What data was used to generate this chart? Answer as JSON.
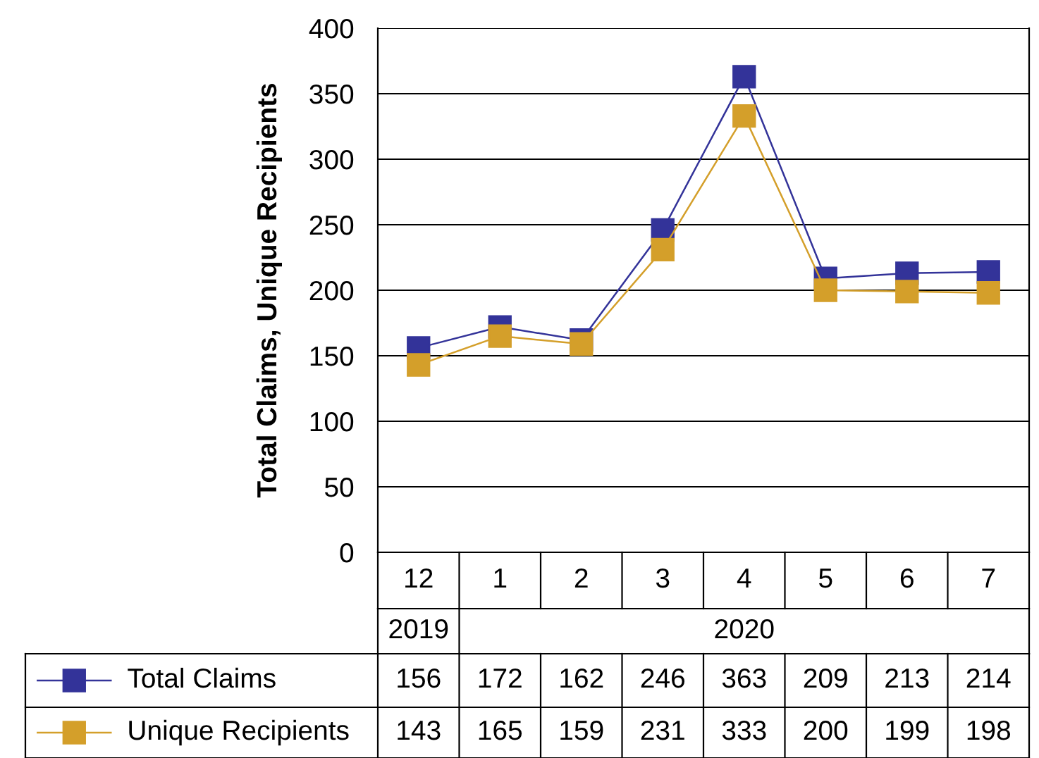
{
  "chart_data": {
    "type": "line",
    "ylabel": "Total Claims, Unique Recipients",
    "categories": [
      "12",
      "1",
      "2",
      "3",
      "4",
      "5",
      "6",
      "7"
    ],
    "series": [
      {
        "name": "Total Claims",
        "color": "#333399",
        "values": [
          156,
          172,
          162,
          246,
          363,
          209,
          213,
          214
        ]
      },
      {
        "name": "Unique Recipients",
        "color": "#d49f2a",
        "values": [
          143,
          165,
          159,
          231,
          333,
          200,
          199,
          198
        ]
      }
    ],
    "annotations": [
      "2019",
      "2020"
    ],
    "ylim": [
      0,
      400
    ],
    "yticks": [
      0,
      50,
      100,
      150,
      200,
      250,
      300,
      350,
      400
    ],
    "grid": "y",
    "marker": "square",
    "line_style": "solid",
    "legend": "bottom",
    "data_labels": true
  }
}
